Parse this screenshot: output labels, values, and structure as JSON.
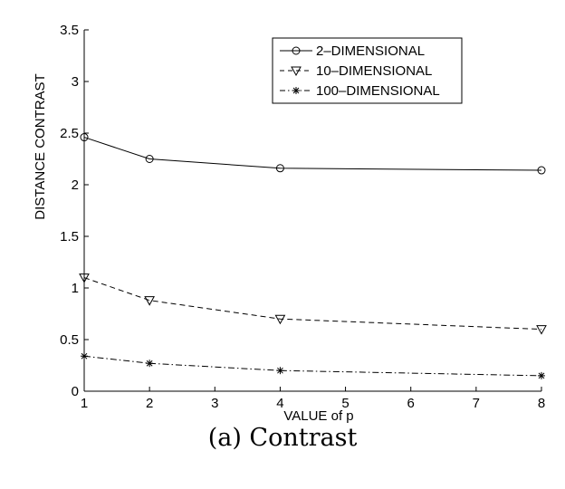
{
  "chart_data": {
    "type": "line",
    "x": [
      1,
      2,
      4,
      8
    ],
    "xlim": [
      1,
      8
    ],
    "ylim": [
      0,
      3.5
    ],
    "xticks": [
      "1",
      "2",
      "3",
      "4",
      "5",
      "6",
      "7",
      "8"
    ],
    "yticks": [
      "0",
      "0.5",
      "1",
      "1.5",
      "2",
      "2.5",
      "3",
      "3.5"
    ],
    "xlabel": "VALUE of p",
    "ylabel": "DISTANCE CONTRAST",
    "grid": false,
    "legend_position": "top-right",
    "series": [
      {
        "name": "2–DIMENSIONAL",
        "values": [
          2.46,
          2.25,
          2.16,
          2.14
        ],
        "marker": "circle",
        "line_style": "solid"
      },
      {
        "name": "10–DIMENSIONAL",
        "values": [
          1.1,
          0.88,
          0.7,
          0.6
        ],
        "marker": "triangle-down",
        "line_style": "dashed"
      },
      {
        "name": "100–DIMENSIONAL",
        "values": [
          0.34,
          0.27,
          0.2,
          0.15
        ],
        "marker": "asterisk",
        "line_style": "dash-dot"
      }
    ]
  },
  "caption": "(a) Contrast"
}
